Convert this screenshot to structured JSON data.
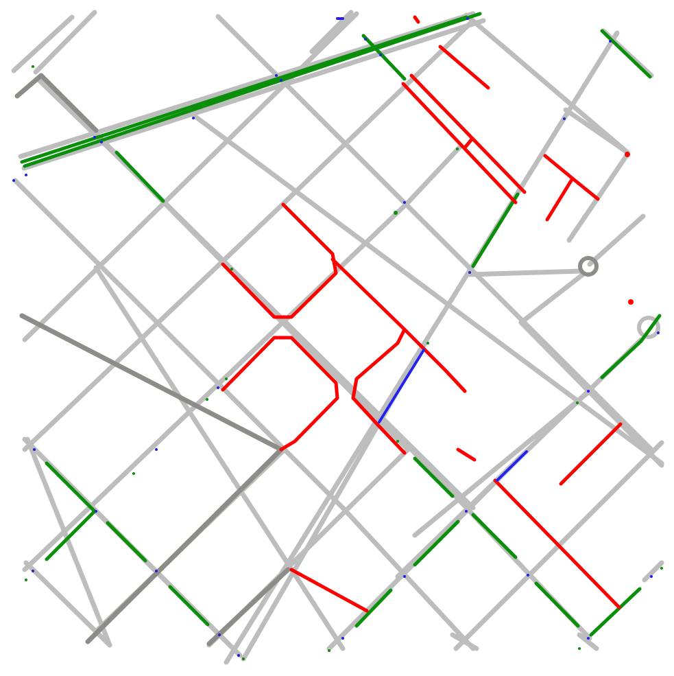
{
  "map": {
    "kind": "street-network-overlay",
    "background": "#ffffff",
    "legend_colors": {
      "base_road": "#bdbdbd",
      "trunk_road": "#8e8c88",
      "red_segment": "#ff0000",
      "green_segment": "#0a8f0a",
      "blue_segment": "#2222ee",
      "node": "#2020e0"
    },
    "printed_text": []
  }
}
